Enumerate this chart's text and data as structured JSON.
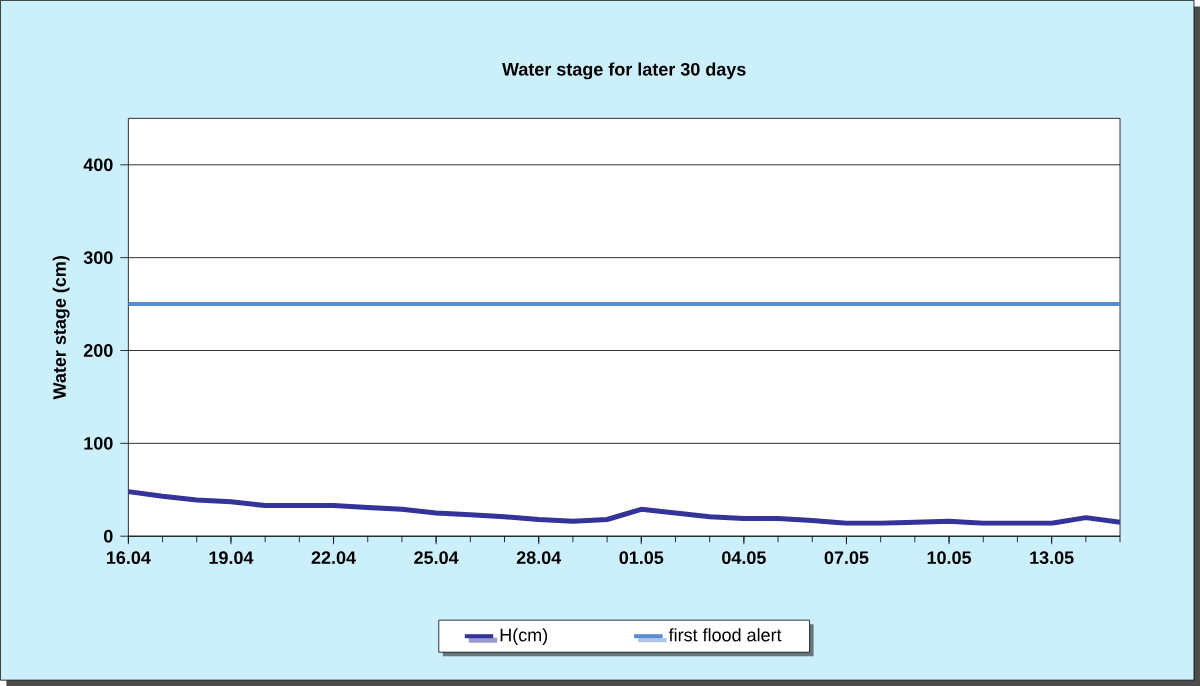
{
  "chart_data": {
    "type": "line",
    "title": "Water stage for later 30 days",
    "ylabel": "Water stage (cm)",
    "categories": [
      "16.04",
      null,
      null,
      "19.04",
      null,
      null,
      "22.04",
      null,
      null,
      "25.04",
      null,
      null,
      "28.04",
      null,
      null,
      "01.05",
      null,
      null,
      "04.05",
      null,
      null,
      "07.05",
      null,
      null,
      "10.05",
      null,
      null,
      "13.05",
      null,
      null
    ],
    "series": [
      {
        "name": "H(cm)",
        "color": "#333399",
        "values": [
          48,
          43,
          39,
          37,
          33,
          33,
          33,
          31,
          29,
          25,
          23,
          21,
          18,
          16,
          18,
          29,
          25,
          21,
          19,
          19,
          17,
          14,
          14,
          15,
          16,
          14,
          14,
          14,
          20,
          15
        ]
      }
    ],
    "ref_lines": [
      {
        "axis": "y",
        "value": 250,
        "label": "first flood alert",
        "color": "#5b8bd0"
      }
    ],
    "ylim": [
      0,
      450
    ],
    "yticks": [
      0,
      100,
      200,
      300,
      400
    ],
    "grid": "y",
    "legend": "bottom",
    "marker": "none",
    "line_style": "solid"
  }
}
